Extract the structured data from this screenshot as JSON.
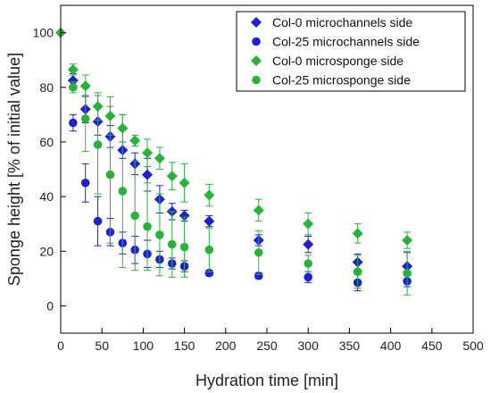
{
  "chart_data": {
    "type": "scatter",
    "xlabel": "Hydration time [min]",
    "ylabel": "Sponge height [% of initial value]",
    "xlim": [
      0,
      500
    ],
    "ylim": [
      -10,
      110
    ],
    "xticks": [
      0,
      50,
      100,
      150,
      200,
      250,
      300,
      350,
      400,
      450,
      500
    ],
    "yticks": [
      0,
      20,
      40,
      60,
      80,
      100
    ],
    "grid": false,
    "legend_position": "top-right",
    "series": [
      {
        "name": "Col-0 microchannels side",
        "marker": "diamond",
        "color": "#1f1fd6",
        "points": [
          {
            "x": 15,
            "y": 82.5,
            "err": 2.5
          },
          {
            "x": 30,
            "y": 72,
            "err": 5
          },
          {
            "x": 45,
            "y": 67.5,
            "err": 5
          },
          {
            "x": 60,
            "y": 62,
            "err": 4
          },
          {
            "x": 75,
            "y": 57,
            "err": 3
          },
          {
            "x": 90,
            "y": 52,
            "err": 4
          },
          {
            "x": 105,
            "y": 48,
            "err": 6
          },
          {
            "x": 120,
            "y": 39,
            "err": 5
          },
          {
            "x": 135,
            "y": 34.5,
            "err": 3
          },
          {
            "x": 150,
            "y": 33,
            "err": 2
          },
          {
            "x": 180,
            "y": 31,
            "err": 2
          },
          {
            "x": 240,
            "y": 24,
            "err": 2
          },
          {
            "x": 300,
            "y": 22.5,
            "err": 3
          },
          {
            "x": 360,
            "y": 16,
            "err": 3
          },
          {
            "x": 420,
            "y": 14.5,
            "err": 5
          }
        ]
      },
      {
        "name": "Col-25 microchannels side",
        "marker": "circle",
        "color": "#1f1fd6",
        "points": [
          {
            "x": 15,
            "y": 67,
            "err": 3
          },
          {
            "x": 30,
            "y": 45,
            "err": 7
          },
          {
            "x": 45,
            "y": 31,
            "err": 9
          },
          {
            "x": 60,
            "y": 27,
            "err": 5
          },
          {
            "x": 75,
            "y": 23,
            "err": 4
          },
          {
            "x": 90,
            "y": 20.5,
            "err": 5
          },
          {
            "x": 105,
            "y": 19,
            "err": 5
          },
          {
            "x": 120,
            "y": 17,
            "err": 3
          },
          {
            "x": 135,
            "y": 15.5,
            "err": 2
          },
          {
            "x": 150,
            "y": 14.5,
            "err": 2
          },
          {
            "x": 180,
            "y": 12,
            "err": 1
          },
          {
            "x": 240,
            "y": 11,
            "err": 1
          },
          {
            "x": 300,
            "y": 10.5,
            "err": 2
          },
          {
            "x": 360,
            "y": 8.5,
            "err": 3
          },
          {
            "x": 420,
            "y": 9,
            "err": 2
          }
        ]
      },
      {
        "name": "Col-0 microsponge side",
        "marker": "diamond",
        "color": "#27b33a",
        "points": [
          {
            "x": 0,
            "y": 100,
            "err": 0
          },
          {
            "x": 15,
            "y": 86.5,
            "err": 2
          },
          {
            "x": 30,
            "y": 80.5,
            "err": 4
          },
          {
            "x": 45,
            "y": 73,
            "err": 5
          },
          {
            "x": 60,
            "y": 69.5,
            "err": 7
          },
          {
            "x": 75,
            "y": 65,
            "err": 5
          },
          {
            "x": 90,
            "y": 60.5,
            "err": 2
          },
          {
            "x": 105,
            "y": 56,
            "err": 5
          },
          {
            "x": 120,
            "y": 54,
            "err": 4
          },
          {
            "x": 135,
            "y": 47.5,
            "err": 5
          },
          {
            "x": 150,
            "y": 45,
            "err": 7
          },
          {
            "x": 180,
            "y": 40.5,
            "err": 4
          },
          {
            "x": 240,
            "y": 35,
            "err": 4
          },
          {
            "x": 300,
            "y": 30,
            "err": 4
          },
          {
            "x": 360,
            "y": 26.5,
            "err": 3.5
          },
          {
            "x": 420,
            "y": 24,
            "err": 3
          }
        ]
      },
      {
        "name": "Col-25 microsponge side",
        "marker": "circle",
        "color": "#27b33a",
        "points": [
          {
            "x": 15,
            "y": 80,
            "err": 2
          },
          {
            "x": 30,
            "y": 68.5,
            "err": 12
          },
          {
            "x": 45,
            "y": 59,
            "err": 18
          },
          {
            "x": 60,
            "y": 48,
            "err": 25
          },
          {
            "x": 75,
            "y": 42,
            "err": 28
          },
          {
            "x": 90,
            "y": 33,
            "err": 20
          },
          {
            "x": 105,
            "y": 29,
            "err": 16
          },
          {
            "x": 120,
            "y": 26,
            "err": 15
          },
          {
            "x": 135,
            "y": 22.5,
            "err": 12
          },
          {
            "x": 150,
            "y": 21.5,
            "err": 11
          },
          {
            "x": 180,
            "y": 20.5,
            "err": 8
          },
          {
            "x": 240,
            "y": 19.5,
            "err": 8
          },
          {
            "x": 300,
            "y": 15.5,
            "err": 3
          },
          {
            "x": 360,
            "y": 12.5,
            "err": 6
          },
          {
            "x": 420,
            "y": 12,
            "err": 8
          }
        ]
      }
    ]
  }
}
